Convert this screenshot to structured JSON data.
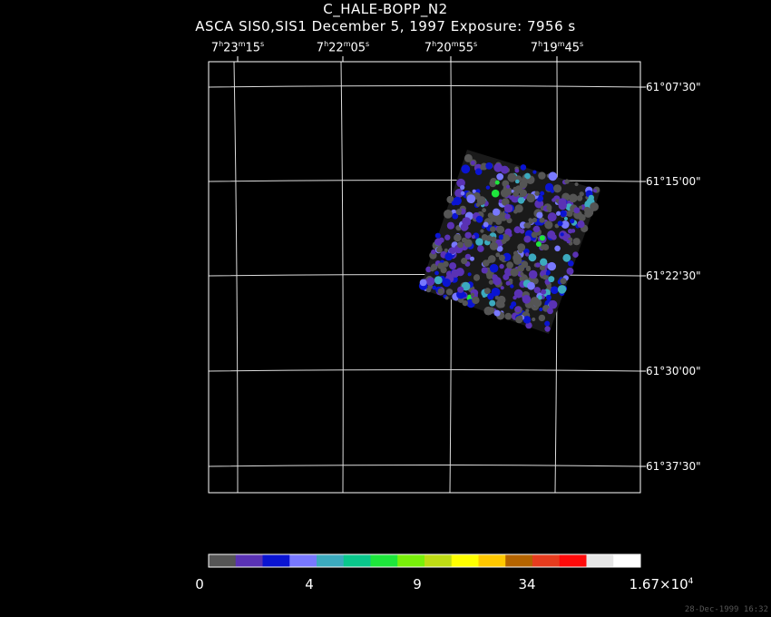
{
  "header": {
    "object": "C_HALE-BOPP_N2",
    "subtitle": "ASCA SIS0,SIS1 December 5, 1997 Exposure: 7956 s"
  },
  "ra_ticks": [
    {
      "h": "7",
      "m": "23",
      "s": "15"
    },
    {
      "h": "7",
      "m": "22",
      "s": "05"
    },
    {
      "h": "7",
      "m": "20",
      "s": "55"
    },
    {
      "h": "7",
      "m": "19",
      "s": "45"
    }
  ],
  "dec_ticks": [
    "61°07'30\"",
    "61°15'00\"",
    "61°22'30\"",
    "61°30'00\"",
    "61°37'30\""
  ],
  "colorbar": {
    "colors": [
      "#555555",
      "#5a32b4",
      "#0a14d2",
      "#7878ff",
      "#3caabe",
      "#0ac88c",
      "#1ee63c",
      "#78f00a",
      "#bedc14",
      "#ffff00",
      "#ffc800",
      "#b46400",
      "#e63c1e",
      "#ff0a0a",
      "#e6e6e6",
      "#ffffff"
    ],
    "labels": [
      "0",
      "4",
      "9",
      "34"
    ],
    "max_label": "1.67×10",
    "max_exp": "4"
  },
  "timestamp": "28-Dec-1999 16:32"
}
